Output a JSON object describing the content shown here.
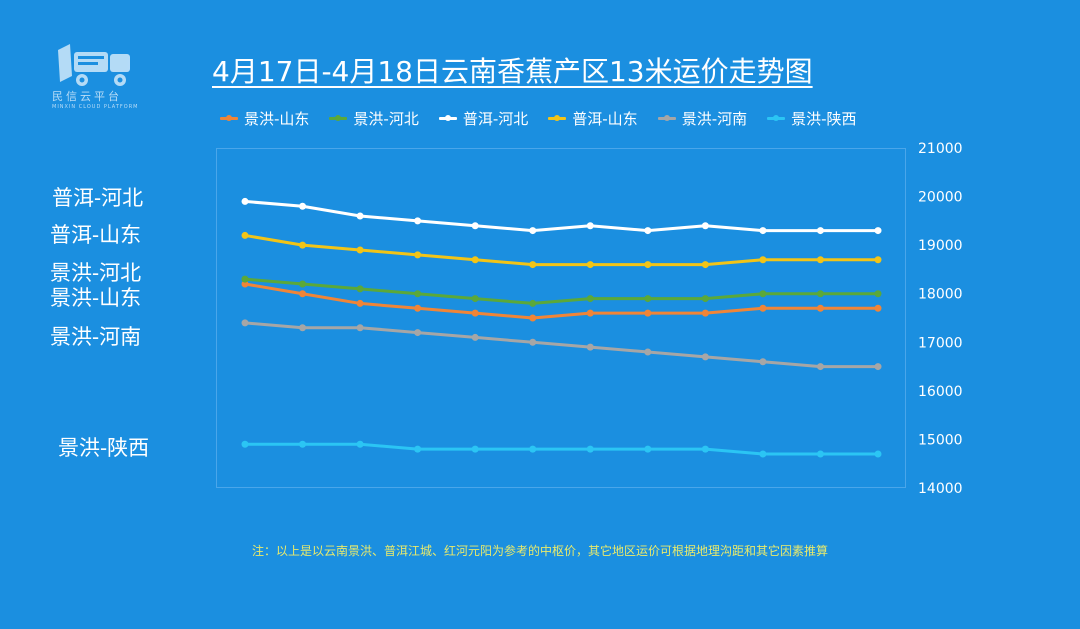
{
  "logo": {
    "text": "民信云平台",
    "subtext": "MINXIN CLOUD PLATFORM"
  },
  "side_labels": [
    {
      "text": "普洱-河北"
    },
    {
      "text": "普洱-山东"
    },
    {
      "text": "景洪-河北"
    },
    {
      "text": "景洪-山东"
    },
    {
      "text": "景洪-河南"
    },
    {
      "text": "景洪-陕西"
    }
  ],
  "note": "注：以上是以云南景洪、普洱江城、红河元阳为参考的中枢价，其它地区运价可根据地理沟距和其它因素推算",
  "chart_data": {
    "type": "line",
    "title": "4月17日-4月18日云南香蕉产区13米运价走势图",
    "x": [
      "",
      "",
      "",
      "",
      "",
      "",
      "",
      "",
      "",
      "",
      "",
      ""
    ],
    "ylim": [
      14000,
      21000
    ],
    "yticks": [
      14000,
      15000,
      16000,
      17000,
      18000,
      19000,
      20000,
      21000
    ],
    "y_axis_side": "right",
    "grid": false,
    "legend_position": "top",
    "series": [
      {
        "name": "景洪-山东",
        "color": "#F08537",
        "values": [
          18200,
          18000,
          17800,
          17700,
          17600,
          17500,
          17600,
          17600,
          17600,
          17700,
          17700,
          17700
        ]
      },
      {
        "name": "景洪-河北",
        "color": "#5BA83A",
        "values": [
          18300,
          18200,
          18100,
          18000,
          17900,
          17800,
          17900,
          17900,
          17900,
          18000,
          18000,
          18000
        ]
      },
      {
        "name": "普洱-河北",
        "color": "#FFFFFF",
        "values": [
          19900,
          19800,
          19600,
          19500,
          19400,
          19300,
          19400,
          19300,
          19400,
          19300,
          19300,
          19300
        ]
      },
      {
        "name": "普洱-山东",
        "color": "#F2C417",
        "values": [
          19200,
          19000,
          18900,
          18800,
          18700,
          18600,
          18600,
          18600,
          18600,
          18700,
          18700,
          18700
        ]
      },
      {
        "name": "景洪-河南",
        "color": "#A6A6A6",
        "values": [
          17400,
          17300,
          17300,
          17200,
          17100,
          17000,
          16900,
          16800,
          16700,
          16600,
          16500,
          16500
        ]
      },
      {
        "name": "景洪-陕西",
        "color": "#2BC5F4",
        "values": [
          14900,
          14900,
          14900,
          14800,
          14800,
          14800,
          14800,
          14800,
          14800,
          14700,
          14700,
          14700
        ]
      }
    ]
  }
}
